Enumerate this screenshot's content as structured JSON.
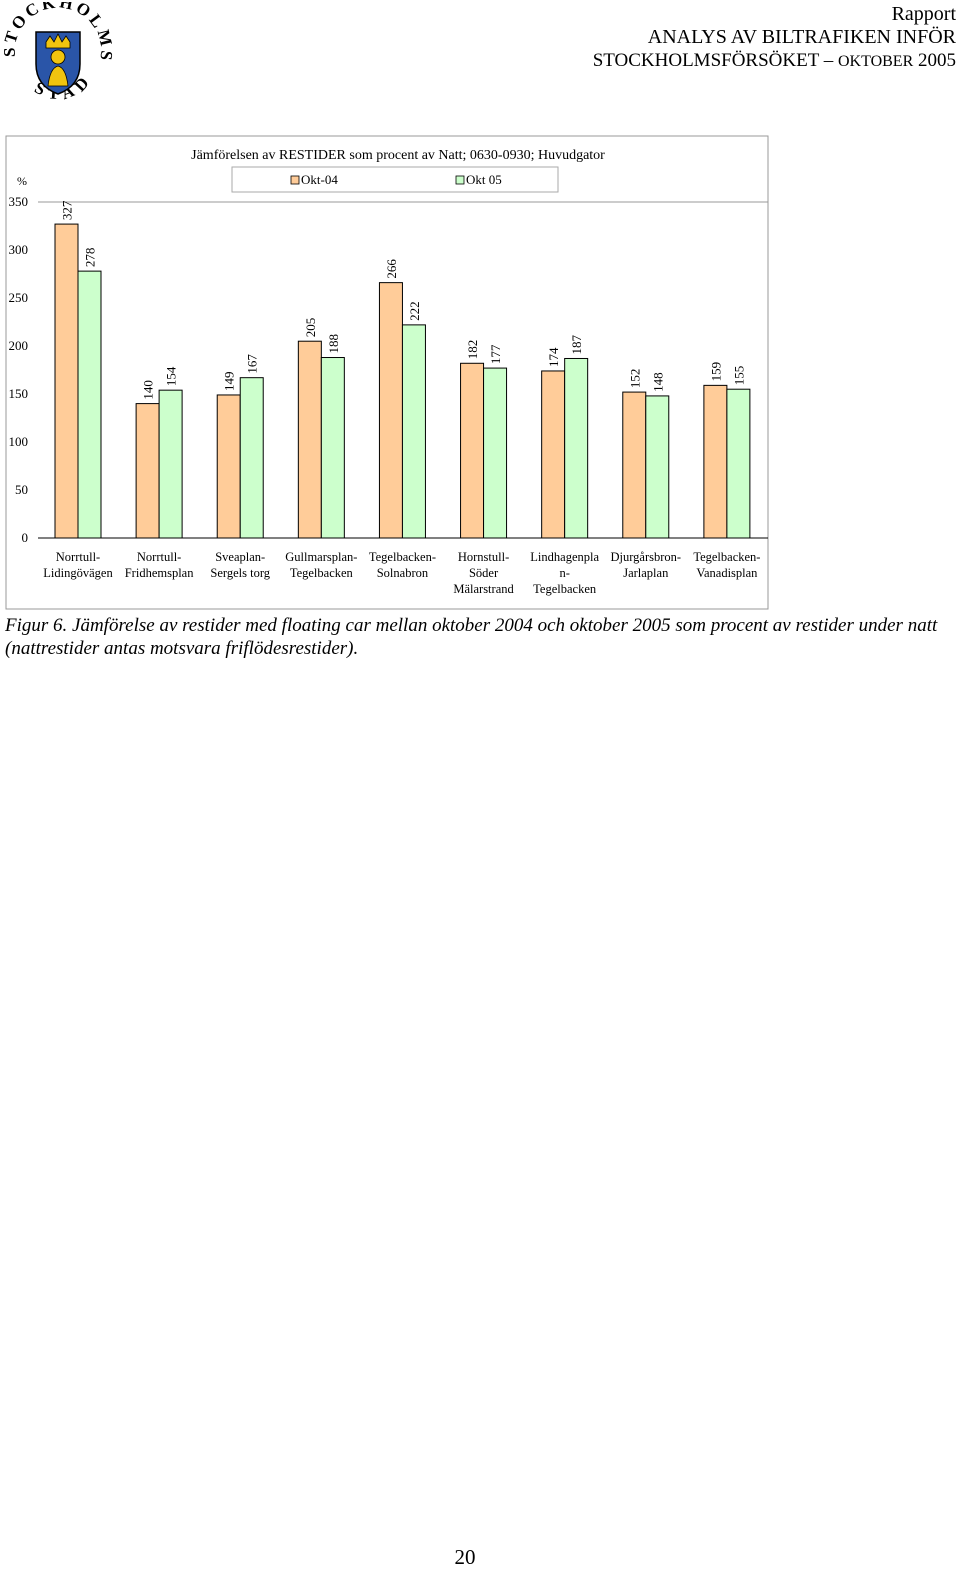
{
  "header": {
    "rapport": "Rapport",
    "title_line1": "ANALYS AV BILTRAFIKEN INFÖR",
    "title_line2_main": "STOCKHOLMSFÖRSÖKET",
    "title_line2_dash": " – ",
    "title_line2_small": "OKTOBER",
    "title_line2_year": " 2005"
  },
  "logo": {
    "text": "STOCKHOLMS STAD",
    "colors": {
      "shield": "#2a55a8",
      "crown": "#f1c40f"
    }
  },
  "chart_data": {
    "type": "bar",
    "title": "Jämförelsen av RESTIDER som procent av Natt; 0630-0930; Huvudgator",
    "ylabel": "%",
    "xlabel": "",
    "ylim": [
      0,
      350
    ],
    "yticks": [
      0,
      50,
      100,
      150,
      200,
      250,
      300,
      350
    ],
    "grid": false,
    "legend_position": "top",
    "categories": [
      [
        "Norrtull-",
        "Lidingövägen"
      ],
      [
        "Norrtull-",
        "Fridhemsplan"
      ],
      [
        "Sveaplan-",
        "Sergels torg"
      ],
      [
        "Gullmarsplan-",
        "Tegelbacken"
      ],
      [
        "Tegelbacken-",
        "Solnabron"
      ],
      [
        "Hornstull-",
        "Söder",
        "Mälarstrand"
      ],
      [
        "Lindhagenpla",
        "n-",
        "Tegelbacken"
      ],
      [
        "Djurgårsbron-",
        "Jarlaplan"
      ],
      [
        "Tegelbacken-",
        "Vanadisplan"
      ]
    ],
    "series": [
      {
        "name": "Okt-04",
        "color": "#ffcc99",
        "values": [
          327,
          140,
          149,
          205,
          266,
          182,
          174,
          152,
          159
        ]
      },
      {
        "name": "Okt 05",
        "color": "#ccffcc",
        "values": [
          278,
          154,
          167,
          188,
          222,
          177,
          187,
          148,
          155
        ]
      }
    ]
  },
  "caption": "Figur 6. Jämförelse av restider med floating car mellan oktober 2004 och oktober 2005 som procent av restider under natt (nattrestider antas motsvara friflödesrestider).",
  "page_number": "20"
}
